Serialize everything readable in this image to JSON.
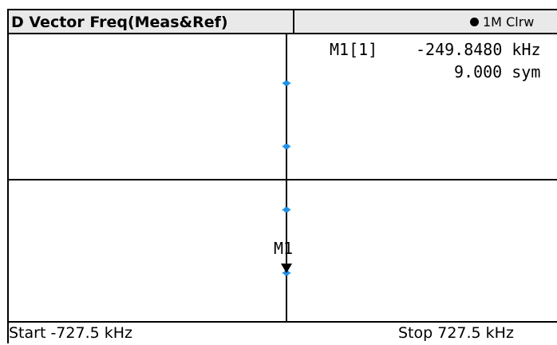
{
  "title": "D Vector Freq(Meas&Ref)",
  "trace_info": "1M Clrw",
  "marker": {
    "name": "M1[1]",
    "value": "-249.8480 kHz",
    "position": "9.000 sym",
    "label": "M1"
  },
  "footer": {
    "start": "Start -727.5 kHz",
    "stop": "Stop 727.5 kHz"
  },
  "chart_data": {
    "type": "scatter",
    "x_range_khz": [
      -727.5,
      727.5
    ],
    "series": [
      {
        "x": [
          -249.848,
          -249.848,
          -249.848,
          -249.848
        ],
        "y_fraction": [
          0.83,
          0.61,
          0.39,
          0.17
        ]
      }
    ],
    "marker_point": {
      "x": -249.848,
      "y_fraction": 0.17
    },
    "colors": {
      "points": "#1e90e6",
      "lines": "#000000",
      "marker": "#000000"
    }
  }
}
